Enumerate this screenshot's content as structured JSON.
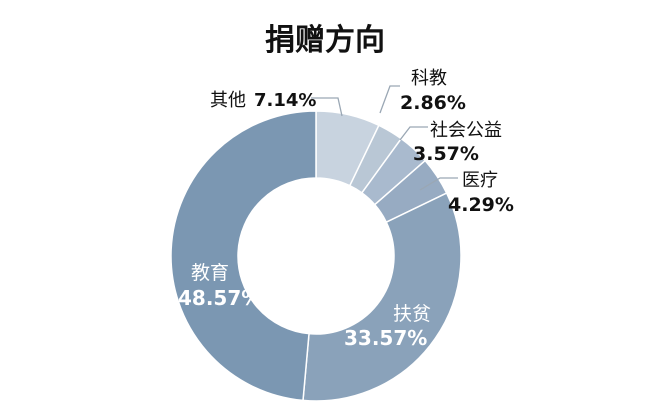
{
  "chart_data": {
    "type": "pie",
    "title": "捐赠方向",
    "unit": "%",
    "slices": [
      {
        "name": "其他",
        "value": 7.14,
        "value_label": "7.14%",
        "color": "#c8d3df"
      },
      {
        "name": "科教",
        "value": 2.86,
        "value_label": "2.86%",
        "color": "#b9c7d5"
      },
      {
        "name": "社会公益",
        "value": 3.57,
        "value_label": "3.57%",
        "color": "#a9bace"
      },
      {
        "name": "医疗",
        "value": 4.29,
        "value_label": "4.29%",
        "color": "#97abc2"
      },
      {
        "name": "扶贫",
        "value": 33.57,
        "value_label": "33.57%",
        "color": "#8aa2ba"
      },
      {
        "name": "教育",
        "value": 48.57,
        "value_label": "48.57%",
        "color": "#7b97b2"
      }
    ],
    "legend": "none",
    "grid": false,
    "donut": true
  }
}
